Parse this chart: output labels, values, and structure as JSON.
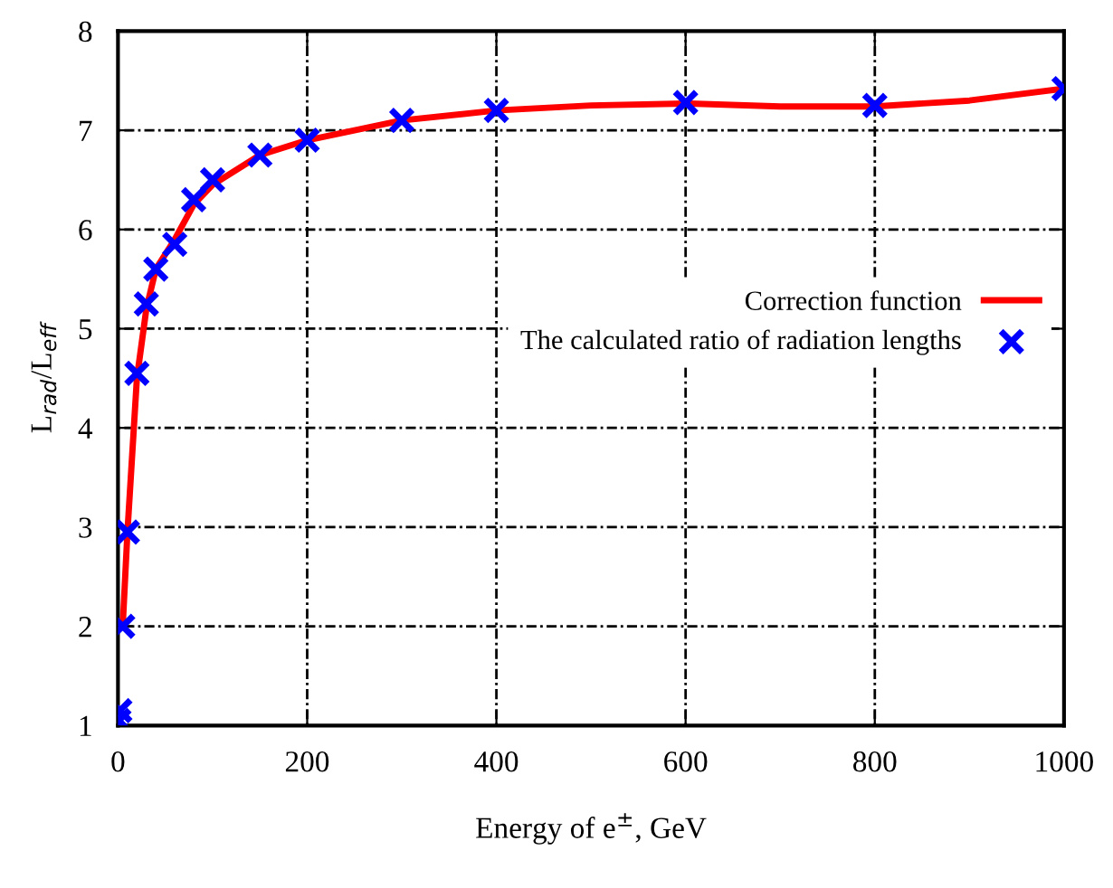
{
  "chart_data": {
    "type": "line",
    "xlabel": "Energy of e$^{±}$, GeV",
    "ylabel": "L$_{rad}$/L$_{eff}$",
    "series": [
      {
        "name": "Correction function",
        "color": "#ff0000",
        "marker": "none",
        "line_style": "solid",
        "x": [
          5,
          10,
          20,
          30,
          40,
          60,
          80,
          100,
          150,
          200,
          300,
          400,
          500,
          600,
          700,
          800,
          900,
          1000
        ],
        "values": [
          2.0,
          2.95,
          4.5,
          5.2,
          5.6,
          5.9,
          6.25,
          6.45,
          6.75,
          6.9,
          7.1,
          7.2,
          7.25,
          7.27,
          7.24,
          7.24,
          7.3,
          7.42
        ]
      },
      {
        "name": "The calculated ratio of radiation lengths",
        "type": "scatter",
        "color": "#0000ff",
        "marker": "cross",
        "x": [
          1,
          2,
          5,
          10,
          20,
          30,
          40,
          60,
          80,
          100,
          150,
          200,
          300,
          400,
          600,
          800,
          1000
        ],
        "values": [
          1.05,
          1.15,
          2.0,
          2.95,
          4.55,
          5.25,
          5.6,
          5.85,
          6.3,
          6.5,
          6.75,
          6.9,
          7.1,
          7.2,
          7.28,
          7.25,
          7.42
        ]
      }
    ],
    "xlim": [
      0,
      1000
    ],
    "xticks": [
      0,
      200,
      400,
      600,
      800,
      1000
    ],
    "ylim": [
      1,
      8
    ],
    "yticks": [
      1,
      2,
      3,
      4,
      5,
      6,
      7,
      8
    ],
    "grid": true,
    "legend": "right"
  }
}
